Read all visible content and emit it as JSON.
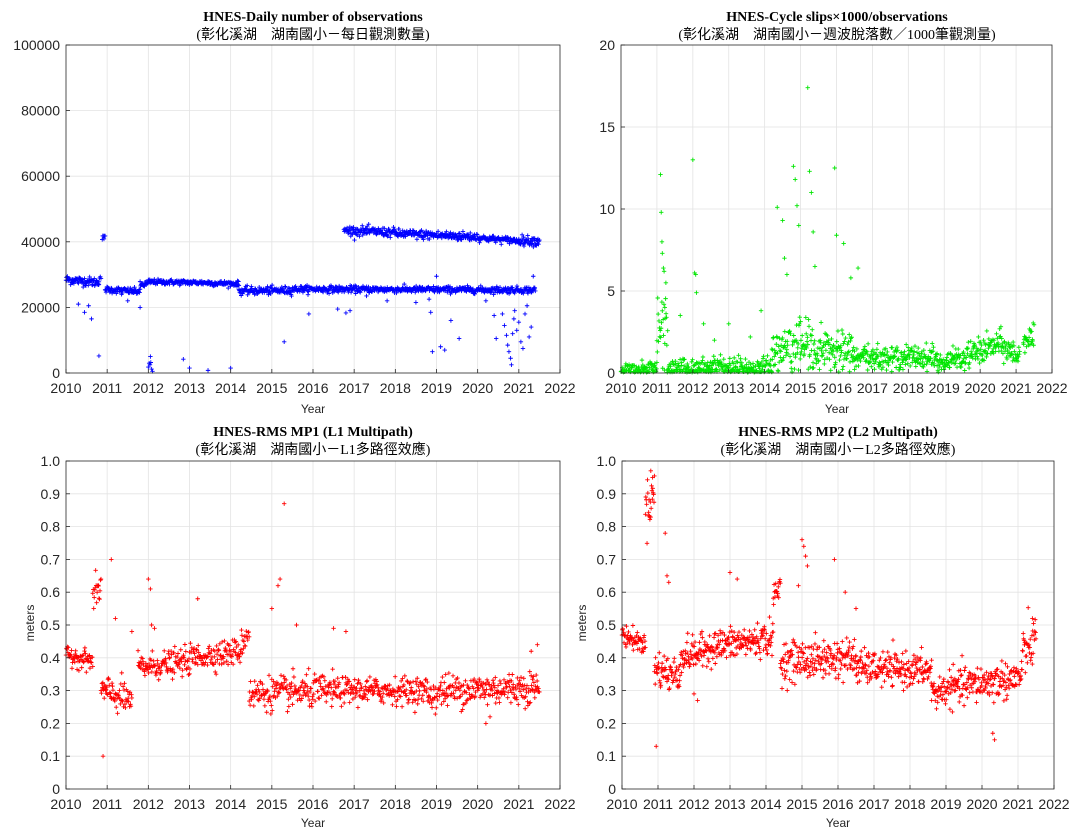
{
  "chart_data": [
    {
      "type": "scatter",
      "title": "HNES-Daily number of observations",
      "subtitle": "(彰化溪湖　湖南國小－每日觀測數量)",
      "xlabel": "Year",
      "ylabel": "",
      "xlim": [
        2010,
        2022
      ],
      "ylim": [
        0,
        100000
      ],
      "xticks": [
        "2010",
        "2011",
        "2012",
        "2013",
        "2014",
        "2015",
        "2016",
        "2017",
        "2018",
        "2019",
        "2020",
        "2021",
        "2022"
      ],
      "yticks": [
        "0",
        "20000",
        "40000",
        "60000",
        "80000",
        "100000"
      ],
      "grid": true,
      "marker": "+",
      "color": "#0000ff",
      "segments": [
        {
          "x": [
            2010.0,
            2010.8
          ],
          "y": [
            28500,
            27600
          ],
          "noise": 700
        },
        {
          "x": [
            2010.8,
            2010.85
          ],
          "y": [
            29000,
            29000
          ],
          "noise": 600
        },
        {
          "x": [
            2010.88,
            2010.95
          ],
          "y": [
            41200,
            41200
          ],
          "noise": 400
        },
        {
          "x": [
            2010.95,
            2011.8
          ],
          "y": [
            25500,
            24800
          ],
          "noise": 500
        },
        {
          "x": [
            2011.8,
            2012.0
          ],
          "y": [
            26800,
            27300
          ],
          "noise": 500
        },
        {
          "x": [
            2012.0,
            2013.5
          ],
          "y": [
            27800,
            27500
          ],
          "noise": 400
        },
        {
          "x": [
            2013.5,
            2014.2
          ],
          "y": [
            27400,
            27200
          ],
          "noise": 400
        },
        {
          "x": [
            2014.2,
            2015.5
          ],
          "y": [
            25000,
            25200
          ],
          "noise": 600
        },
        {
          "x": [
            2015.5,
            2021.4
          ],
          "y": [
            25600,
            25300
          ],
          "noise": 500
        },
        {
          "x": [
            2016.75,
            2018.0
          ],
          "y": [
            43500,
            42800
          ],
          "noise": 700
        },
        {
          "x": [
            2018.0,
            2020.0
          ],
          "y": [
            42500,
            41500
          ],
          "noise": 700
        },
        {
          "x": [
            2020.0,
            2021.0
          ],
          "y": [
            41200,
            40300
          ],
          "noise": 500
        },
        {
          "x": [
            2021.0,
            2021.5
          ],
          "y": [
            40500,
            40200
          ],
          "noise": 700
        }
      ],
      "outliers": [
        [
          2010.3,
          21000
        ],
        [
          2010.45,
          18500
        ],
        [
          2010.55,
          20500
        ],
        [
          2010.62,
          16500
        ],
        [
          2010.8,
          5200
        ],
        [
          2011.35,
          24000
        ],
        [
          2011.5,
          22000
        ],
        [
          2011.8,
          20000
        ],
        [
          2012.0,
          1800
        ],
        [
          2012.02,
          3000
        ],
        [
          2012.04,
          2500
        ],
        [
          2012.06,
          3200
        ],
        [
          2012.08,
          1200
        ],
        [
          2012.1,
          500
        ],
        [
          2012.05,
          5000
        ],
        [
          2012.85,
          4200
        ],
        [
          2013.0,
          1500
        ],
        [
          2013.45,
          800
        ],
        [
          2014.0,
          1500
        ],
        [
          2016.6,
          19500
        ],
        [
          2016.8,
          18300
        ],
        [
          2016.9,
          19000
        ],
        [
          2015.3,
          9500
        ],
        [
          2015.9,
          18000
        ],
        [
          2017.3,
          23500
        ],
        [
          2017.8,
          22000
        ],
        [
          2018.5,
          21500
        ],
        [
          2018.82,
          22500
        ],
        [
          2018.86,
          18500
        ],
        [
          2018.9,
          6500
        ],
        [
          2019.0,
          29500
        ],
        [
          2019.1,
          8000
        ],
        [
          2019.2,
          7000
        ],
        [
          2019.35,
          16000
        ],
        [
          2019.55,
          10500
        ],
        [
          2020.2,
          22000
        ],
        [
          2020.4,
          17500
        ],
        [
          2020.45,
          10500
        ],
        [
          2020.6,
          18000
        ],
        [
          2020.65,
          14500
        ],
        [
          2020.7,
          11500
        ],
        [
          2020.73,
          8500
        ],
        [
          2020.76,
          6500
        ],
        [
          2020.8,
          4500
        ],
        [
          2020.82,
          2500
        ],
        [
          2020.85,
          12000
        ],
        [
          2020.88,
          16500
        ],
        [
          2020.9,
          19000
        ],
        [
          2020.95,
          13000
        ],
        [
          2021.0,
          15500
        ],
        [
          2021.05,
          9500
        ],
        [
          2021.1,
          7500
        ],
        [
          2021.15,
          18000
        ],
        [
          2021.2,
          20500
        ],
        [
          2021.25,
          11000
        ],
        [
          2021.3,
          14000
        ],
        [
          2021.35,
          29500
        ]
      ]
    },
    {
      "type": "scatter",
      "title": "HNES-Cycle slips×1000/observations",
      "subtitle": "(彰化溪湖　湖南國小－週波脫落數／1000筆觀測量)",
      "xlabel": "Year",
      "ylabel": "",
      "xlim": [
        2010,
        2022
      ],
      "ylim": [
        0,
        20
      ],
      "xticks": [
        "2010",
        "2011",
        "2012",
        "2013",
        "2014",
        "2015",
        "2016",
        "2017",
        "2018",
        "2019",
        "2020",
        "2021",
        "2022"
      ],
      "yticks": [
        "0",
        "5",
        "10",
        "15",
        "20"
      ],
      "grid": true,
      "marker": "+",
      "color": "#00e600",
      "segments": [
        {
          "x": [
            2010.0,
            2011.0
          ],
          "y": [
            0.2,
            0.2
          ],
          "noise": 0.25
        },
        {
          "x": [
            2011.0,
            2011.3
          ],
          "y": [
            2.8,
            2.2
          ],
          "noise": 1.2
        },
        {
          "x": [
            2011.3,
            2014.2
          ],
          "y": [
            0.25,
            0.3
          ],
          "noise": 0.35
        },
        {
          "x": [
            2014.2,
            2015.0
          ],
          "y": [
            1.3,
            1.7
          ],
          "noise": 0.8
        },
        {
          "x": [
            2015.0,
            2016.5
          ],
          "y": [
            1.6,
            1.1
          ],
          "noise": 0.7
        },
        {
          "x": [
            2016.5,
            2018.8
          ],
          "y": [
            0.9,
            1.0
          ],
          "noise": 0.35
        },
        {
          "x": [
            2018.8,
            2019.3
          ],
          "y": [
            0.5,
            0.7
          ],
          "noise": 0.3
        },
        {
          "x": [
            2019.3,
            2020.6
          ],
          "y": [
            0.8,
            1.8
          ],
          "noise": 0.4
        },
        {
          "x": [
            2020.6,
            2021.1
          ],
          "y": [
            1.6,
            1.0
          ],
          "noise": 0.4
        },
        {
          "x": [
            2021.2,
            2021.5
          ],
          "y": [
            2.1,
            2.1
          ],
          "noise": 0.35
        }
      ],
      "outliers": [
        [
          2011.1,
          12.1
        ],
        [
          2011.12,
          9.8
        ],
        [
          2011.14,
          8.0
        ],
        [
          2011.15,
          7.3
        ],
        [
          2011.18,
          6.4
        ],
        [
          2011.2,
          6.2
        ],
        [
          2011.22,
          4.0
        ],
        [
          2011.25,
          5.5
        ],
        [
          2011.65,
          3.5
        ],
        [
          2012.0,
          13.0
        ],
        [
          2012.05,
          6.1
        ],
        [
          2012.08,
          6.0
        ],
        [
          2012.1,
          4.9
        ],
        [
          2012.3,
          3.0
        ],
        [
          2012.6,
          2.0
        ],
        [
          2013.0,
          3.0
        ],
        [
          2013.6,
          2.2
        ],
        [
          2013.9,
          3.8
        ],
        [
          2014.35,
          10.1
        ],
        [
          2014.5,
          9.3
        ],
        [
          2014.55,
          7.0
        ],
        [
          2014.62,
          6.0
        ],
        [
          2014.8,
          12.6
        ],
        [
          2014.85,
          11.8
        ],
        [
          2014.9,
          10.2
        ],
        [
          2014.95,
          9.0
        ],
        [
          2015.2,
          17.4
        ],
        [
          2015.25,
          12.3
        ],
        [
          2015.3,
          11.0
        ],
        [
          2015.35,
          8.6
        ],
        [
          2015.4,
          6.5
        ],
        [
          2015.95,
          12.5
        ],
        [
          2016.0,
          8.4
        ],
        [
          2016.2,
          7.9
        ],
        [
          2016.4,
          5.8
        ],
        [
          2016.6,
          6.4
        ]
      ]
    },
    {
      "type": "scatter",
      "title": "HNES-RMS MP1 (L1 Multipath)",
      "subtitle": "(彰化溪湖　湖南國小－L1多路徑效應)",
      "xlabel": "Year",
      "ylabel": "meters",
      "xlim": [
        2010,
        2022
      ],
      "ylim": [
        0,
        1
      ],
      "xticks": [
        "2010",
        "2011",
        "2012",
        "2013",
        "2014",
        "2015",
        "2016",
        "2017",
        "2018",
        "2019",
        "2020",
        "2021",
        "2022"
      ],
      "yticks": [
        "0",
        "0.1",
        "0.2",
        "0.3",
        "0.4",
        "0.5",
        "0.6",
        "0.7",
        "0.8",
        "0.9",
        "1.0"
      ],
      "grid": true,
      "marker": "+",
      "color": "#ff0000",
      "segments": [
        {
          "x": [
            2010.0,
            2010.65
          ],
          "y": [
            0.41,
            0.39
          ],
          "noise": 0.015
        },
        {
          "x": [
            2010.65,
            2010.85
          ],
          "y": [
            0.58,
            0.62
          ],
          "noise": 0.025
        },
        {
          "x": [
            2010.85,
            2011.6
          ],
          "y": [
            0.3,
            0.27
          ],
          "noise": 0.025
        },
        {
          "x": [
            2011.75,
            2013.0
          ],
          "y": [
            0.37,
            0.39
          ],
          "noise": 0.02
        },
        {
          "x": [
            2013.0,
            2014.25
          ],
          "y": [
            0.4,
            0.42
          ],
          "noise": 0.02
        },
        {
          "x": [
            2014.25,
            2014.45
          ],
          "y": [
            0.44,
            0.48
          ],
          "noise": 0.02
        },
        {
          "x": [
            2014.45,
            2016.5
          ],
          "y": [
            0.29,
            0.3
          ],
          "noise": 0.025
        },
        {
          "x": [
            2016.5,
            2018.8
          ],
          "y": [
            0.3,
            0.3
          ],
          "noise": 0.02
        },
        {
          "x": [
            2018.8,
            2019.2
          ],
          "y": [
            0.28,
            0.3
          ],
          "noise": 0.025
        },
        {
          "x": [
            2019.2,
            2021.5
          ],
          "y": [
            0.3,
            0.31
          ],
          "noise": 0.025
        }
      ],
      "outliers": [
        [
          2010.9,
          0.1
        ],
        [
          2011.1,
          0.7
        ],
        [
          2011.2,
          0.52
        ],
        [
          2011.6,
          0.48
        ],
        [
          2012.0,
          0.64
        ],
        [
          2012.05,
          0.61
        ],
        [
          2012.08,
          0.5
        ],
        [
          2012.15,
          0.49
        ],
        [
          2013.2,
          0.58
        ],
        [
          2015.3,
          0.87
        ],
        [
          2015.2,
          0.64
        ],
        [
          2015.15,
          0.62
        ],
        [
          2015.0,
          0.55
        ],
        [
          2016.5,
          0.49
        ],
        [
          2016.8,
          0.48
        ],
        [
          2015.6,
          0.5
        ],
        [
          2020.2,
          0.2
        ],
        [
          2020.3,
          0.22
        ],
        [
          2021.3,
          0.42
        ],
        [
          2021.45,
          0.44
        ]
      ]
    },
    {
      "type": "scatter",
      "title": "HNES-RMS MP2 (L2 Multipath)",
      "subtitle": "(彰化溪湖　湖南國小－L2多路徑效應)",
      "xlabel": "Year",
      "ylabel": "meters",
      "xlim": [
        2010,
        2022
      ],
      "ylim": [
        0,
        1
      ],
      "xticks": [
        "2010",
        "2011",
        "2012",
        "2013",
        "2014",
        "2015",
        "2016",
        "2017",
        "2018",
        "2019",
        "2020",
        "2021",
        "2022"
      ],
      "yticks": [
        "0",
        "0.1",
        "0.2",
        "0.3",
        "0.4",
        "0.5",
        "0.6",
        "0.7",
        "0.8",
        "0.9",
        "1.0"
      ],
      "grid": true,
      "marker": "+",
      "color": "#ff0000",
      "segments": [
        {
          "x": [
            2010.0,
            2010.65
          ],
          "y": [
            0.47,
            0.44
          ],
          "noise": 0.015
        },
        {
          "x": [
            2010.65,
            2010.9
          ],
          "y": [
            0.86,
            0.9
          ],
          "noise": 0.035
        },
        {
          "x": [
            2010.9,
            2011.6
          ],
          "y": [
            0.37,
            0.34
          ],
          "noise": 0.03
        },
        {
          "x": [
            2011.6,
            2012.3
          ],
          "y": [
            0.4,
            0.42
          ],
          "noise": 0.025
        },
        {
          "x": [
            2012.3,
            2014.2
          ],
          "y": [
            0.43,
            0.46
          ],
          "noise": 0.025
        },
        {
          "x": [
            2014.2,
            2014.4
          ],
          "y": [
            0.58,
            0.62
          ],
          "noise": 0.02
        },
        {
          "x": [
            2014.4,
            2016.5
          ],
          "y": [
            0.39,
            0.4
          ],
          "noise": 0.03
        },
        {
          "x": [
            2016.5,
            2018.6
          ],
          "y": [
            0.37,
            0.36
          ],
          "noise": 0.025
        },
        {
          "x": [
            2018.6,
            2019.2
          ],
          "y": [
            0.29,
            0.31
          ],
          "noise": 0.025
        },
        {
          "x": [
            2019.2,
            2021.1
          ],
          "y": [
            0.31,
            0.34
          ],
          "noise": 0.028
        },
        {
          "x": [
            2021.1,
            2021.5
          ],
          "y": [
            0.4,
            0.46
          ],
          "noise": 0.035
        }
      ],
      "outliers": [
        [
          2010.8,
          0.97
        ],
        [
          2010.85,
          0.95
        ],
        [
          2010.95,
          0.13
        ],
        [
          2011.2,
          0.78
        ],
        [
          2011.25,
          0.65
        ],
        [
          2011.3,
          0.63
        ],
        [
          2012.0,
          0.29
        ],
        [
          2012.1,
          0.27
        ],
        [
          2013.0,
          0.66
        ],
        [
          2013.2,
          0.64
        ],
        [
          2015.0,
          0.76
        ],
        [
          2015.05,
          0.74
        ],
        [
          2015.1,
          0.71
        ],
        [
          2015.15,
          0.68
        ],
        [
          2014.9,
          0.62
        ],
        [
          2015.9,
          0.7
        ],
        [
          2016.2,
          0.6
        ],
        [
          2016.5,
          0.55
        ],
        [
          2020.3,
          0.17
        ],
        [
          2020.35,
          0.15
        ],
        [
          2021.4,
          0.52
        ]
      ]
    }
  ]
}
